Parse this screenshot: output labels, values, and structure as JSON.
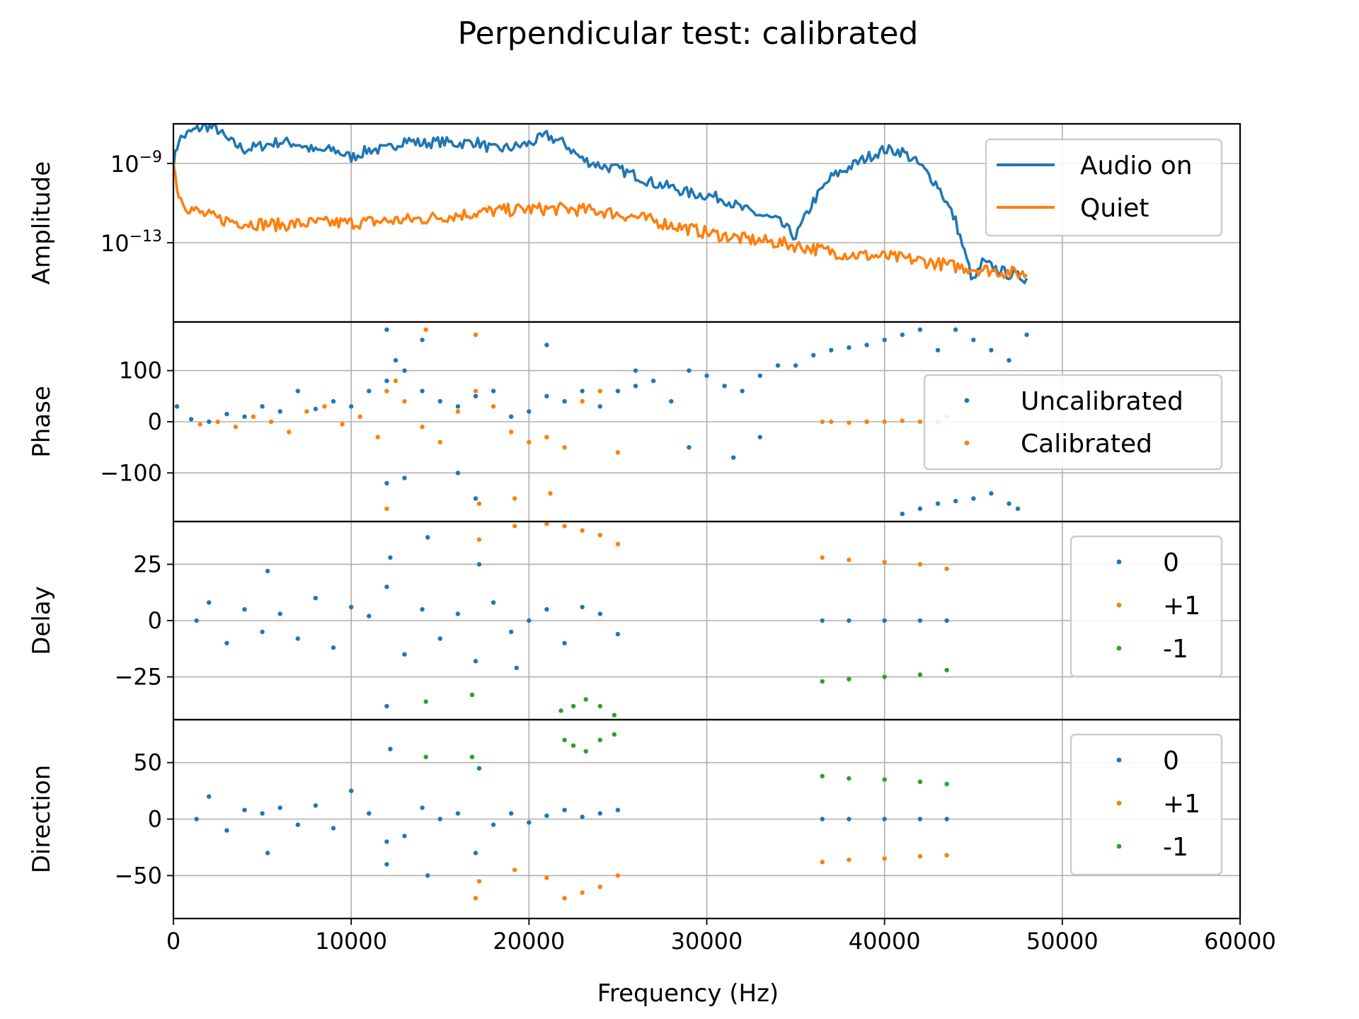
{
  "chart_data": [
    {
      "type": "line",
      "panel": "amplitude",
      "title": "Perpendicular test: calibrated",
      "xlabel": "Frequency (Hz)",
      "ylabel": "Amplitude",
      "yscale": "log",
      "xlim": [
        0,
        60000
      ],
      "ylim_log10": [
        -17,
        -7
      ],
      "x_ticks": [
        "0",
        "10000",
        "20000",
        "30000",
        "40000",
        "50000",
        "60000"
      ],
      "y_ticks": [
        {
          "base": "10",
          "exp": "−9",
          "value_log10": -9
        },
        {
          "base": "10",
          "exp": "−13",
          "value_log10": -13
        }
      ],
      "grid": true,
      "legend_position": "upper right",
      "series": [
        {
          "name": "Audio on",
          "color": "#1f77b4",
          "x": [
            0,
            300,
            1000,
            1800,
            2500,
            3000,
            4000,
            5000,
            6000,
            7000,
            8000,
            9000,
            10000,
            11000,
            12000,
            13000,
            14000,
            15000,
            16000,
            17000,
            18000,
            19000,
            20000,
            21000,
            22000,
            23000,
            24000,
            25000,
            26000,
            27000,
            28000,
            29000,
            30000,
            31000,
            32000,
            33000,
            34000,
            35000,
            36000,
            37000,
            38000,
            39000,
            40000,
            41000,
            42000,
            43000,
            44000,
            44500,
            45000,
            45500,
            46000,
            47000,
            48000
          ],
          "log10_y": [
            -9.0,
            -7.8,
            -7.4,
            -7.1,
            -7.3,
            -7.8,
            -8.3,
            -8.1,
            -7.9,
            -8.0,
            -8.4,
            -8.3,
            -8.7,
            -8.3,
            -8.3,
            -7.8,
            -8.0,
            -7.9,
            -8.0,
            -7.9,
            -8.3,
            -8.2,
            -8.0,
            -7.6,
            -8.0,
            -8.8,
            -9.1,
            -9.3,
            -9.6,
            -10.0,
            -10.2,
            -10.5,
            -10.6,
            -10.8,
            -11.3,
            -11.6,
            -11.9,
            -12.7,
            -10.9,
            -9.7,
            -9.2,
            -8.7,
            -8.3,
            -8.4,
            -9.1,
            -10.1,
            -11.9,
            -13.5,
            -15.0,
            -14.0,
            -14.2,
            -14.6,
            -14.8
          ]
        },
        {
          "name": "Quiet",
          "color": "#ff7f0e",
          "x": [
            0,
            300,
            800,
            1500,
            2500,
            4000,
            6000,
            8000,
            10000,
            12000,
            14000,
            16000,
            18000,
            20000,
            22000,
            24000,
            26000,
            28000,
            30000,
            32000,
            34000,
            36000,
            38000,
            40000,
            42000,
            44000,
            46000,
            48000
          ],
          "log10_y": [
            -9.0,
            -10.6,
            -11.2,
            -11.5,
            -11.8,
            -12.0,
            -12.1,
            -12.0,
            -12.0,
            -11.9,
            -11.8,
            -11.6,
            -11.4,
            -11.3,
            -11.3,
            -11.4,
            -11.7,
            -12.1,
            -12.5,
            -12.8,
            -13.0,
            -13.3,
            -13.6,
            -13.7,
            -13.9,
            -14.2,
            -14.4,
            -14.6
          ]
        }
      ]
    },
    {
      "type": "scatter",
      "panel": "phase",
      "ylabel": "Phase",
      "xlim": [
        0,
        60000
      ],
      "ylim": [
        -195,
        195
      ],
      "y_ticks": [
        "100",
        "0",
        "−100"
      ],
      "y_tick_values": [
        100,
        0,
        -100
      ],
      "grid": true,
      "legend_position": "center right",
      "series": [
        {
          "name": "Uncalibrated",
          "color": "#1f77b4",
          "x": [
            200,
            1000,
            2000,
            3000,
            4000,
            5000,
            6000,
            7000,
            8000,
            9000,
            10000,
            11000,
            12000,
            12500,
            13000,
            14000,
            15000,
            16000,
            17000,
            18000,
            19000,
            20000,
            21000,
            22000,
            23000,
            24000,
            25000,
            26000,
            27000,
            28000,
            29000,
            30000,
            31000,
            32000,
            33000,
            34000,
            35000,
            36000,
            37000,
            38000,
            39000,
            40000,
            41000,
            42000,
            43000,
            44000,
            45000,
            46000,
            47000,
            48000,
            12000,
            14000,
            17000,
            21000,
            26000,
            29000,
            31500,
            33000,
            41000,
            42000,
            43000,
            44000,
            45000,
            46000,
            47000,
            47500,
            12000,
            13000,
            16000,
            17000
          ],
          "y": [
            30,
            5,
            0,
            15,
            10,
            30,
            20,
            60,
            25,
            40,
            30,
            60,
            80,
            120,
            100,
            60,
            40,
            30,
            50,
            60,
            10,
            20,
            50,
            40,
            60,
            30,
            60,
            70,
            80,
            40,
            100,
            90,
            70,
            60,
            90,
            110,
            110,
            130,
            140,
            145,
            150,
            160,
            170,
            180,
            140,
            180,
            160,
            140,
            120,
            170,
            180,
            160,
            170,
            150,
            100,
            -50,
            -70,
            -30,
            -180,
            -170,
            -160,
            -155,
            -150,
            -140,
            -160,
            -170,
            -120,
            -110,
            -100,
            -150
          ]
        },
        {
          "name": "Calibrated",
          "color": "#ff7f0e",
          "x": [
            1500,
            2500,
            3500,
            4500,
            5500,
            6500,
            7500,
            8500,
            9500,
            10500,
            11500,
            12000,
            12500,
            13000,
            14000,
            15000,
            16000,
            17000,
            18000,
            19000,
            20000,
            21000,
            22000,
            23000,
            24000,
            25000,
            36500,
            37000,
            38000,
            39000,
            40000,
            41000,
            42000,
            43000,
            43500,
            14200,
            17000,
            12000,
            17200,
            19200,
            21200
          ],
          "y": [
            -5,
            0,
            -10,
            10,
            0,
            -20,
            20,
            30,
            -5,
            10,
            -30,
            60,
            80,
            40,
            -10,
            -40,
            20,
            60,
            30,
            -20,
            -40,
            -30,
            -50,
            40,
            60,
            -60,
            0,
            0,
            -2,
            0,
            0,
            2,
            0,
            0,
            10,
            180,
            170,
            -170,
            -160,
            -150,
            -140
          ]
        }
      ]
    },
    {
      "type": "scatter",
      "panel": "delay",
      "ylabel": "Delay",
      "xlim": [
        0,
        60000
      ],
      "ylim": [
        -44,
        44
      ],
      "y_ticks": [
        "25",
        "0",
        "−25"
      ],
      "y_tick_values": [
        25,
        0,
        -25
      ],
      "grid": true,
      "legend_position": "upper right",
      "series": [
        {
          "name": "0",
          "color": "#1f77b4",
          "x": [
            1300,
            2000,
            3000,
            4000,
            5000,
            5300,
            6000,
            7000,
            8000,
            9000,
            10000,
            11000,
            12000,
            12200,
            13000,
            14000,
            14300,
            15000,
            16000,
            17000,
            17200,
            18000,
            19000,
            19300,
            20000,
            21000,
            22000,
            23000,
            24000,
            25000,
            12000,
            36500,
            38000,
            40000,
            42000,
            43500
          ],
          "y": [
            0,
            8,
            -10,
            5,
            -5,
            22,
            3,
            -8,
            10,
            -12,
            6,
            2,
            15,
            28,
            -15,
            5,
            37,
            -8,
            3,
            -18,
            25,
            8,
            -5,
            -21,
            0,
            5,
            -10,
            6,
            3,
            -6,
            -38,
            0,
            0,
            0,
            0,
            0
          ]
        },
        {
          "name": "+1",
          "color": "#ff7f0e",
          "x": [
            17200,
            19200,
            21000,
            22000,
            23000,
            24000,
            25000,
            36500,
            38000,
            40000,
            42000,
            43500
          ],
          "y": [
            36,
            42,
            43,
            42,
            40,
            38,
            34,
            28,
            27,
            26,
            25,
            23
          ]
        },
        {
          "name": "-1",
          "color": "#2ca02c",
          "x": [
            14200,
            16800,
            21800,
            22500,
            23200,
            24000,
            24800,
            36500,
            38000,
            40000,
            42000,
            43500
          ],
          "y": [
            -36,
            -33,
            -40,
            -38,
            -35,
            -38,
            -42,
            -27,
            -26,
            -25,
            -24,
            -22
          ]
        }
      ]
    },
    {
      "type": "scatter",
      "panel": "direction",
      "ylabel": "Direction",
      "xlim": [
        0,
        60000
      ],
      "ylim": [
        -88,
        88
      ],
      "y_ticks": [
        "50",
        "0",
        "−50"
      ],
      "y_tick_values": [
        50,
        0,
        -50
      ],
      "grid": true,
      "legend_position": "upper right",
      "series": [
        {
          "name": "0",
          "color": "#1f77b4",
          "x": [
            1300,
            2000,
            3000,
            4000,
            5000,
            5300,
            6000,
            7000,
            8000,
            9000,
            10000,
            11000,
            12000,
            12200,
            13000,
            14000,
            14300,
            15000,
            16000,
            17000,
            17200,
            18000,
            19000,
            20000,
            21000,
            22000,
            23000,
            24000,
            25000,
            12000,
            36500,
            38000,
            40000,
            42000,
            43500
          ],
          "y": [
            0,
            20,
            -10,
            8,
            5,
            -30,
            10,
            -5,
            12,
            -8,
            25,
            5,
            -20,
            62,
            -15,
            10,
            -50,
            0,
            5,
            -30,
            45,
            -5,
            5,
            -3,
            3,
            8,
            2,
            5,
            8,
            -40,
            0,
            0,
            0,
            0,
            0
          ]
        },
        {
          "name": "+1",
          "color": "#ff7f0e",
          "x": [
            17200,
            19200,
            21000,
            22000,
            23000,
            24000,
            25000,
            17000,
            36500,
            38000,
            40000,
            42000,
            43500
          ],
          "y": [
            -55,
            -45,
            -52,
            -70,
            -65,
            -60,
            -50,
            -70,
            -38,
            -36,
            -35,
            -33,
            -32
          ]
        },
        {
          "name": "-1",
          "color": "#2ca02c",
          "x": [
            14200,
            16800,
            22000,
            22500,
            23200,
            24000,
            24800,
            36500,
            38000,
            40000,
            42000,
            43500
          ],
          "y": [
            55,
            55,
            70,
            65,
            60,
            70,
            75,
            38,
            36,
            35,
            33,
            31
          ]
        }
      ]
    }
  ]
}
